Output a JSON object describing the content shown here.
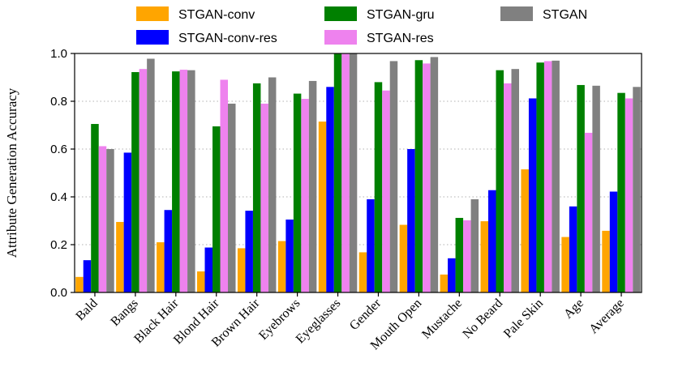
{
  "chart_data": {
    "type": "bar",
    "title": "",
    "xlabel": "",
    "ylabel": "Attribute Generation Accuracy",
    "ylim": [
      0,
      1.0
    ],
    "yticks": [
      0.0,
      0.2,
      0.4,
      0.6,
      0.8,
      1.0
    ],
    "ytick_labels": [
      "0.0",
      "0.2",
      "0.4",
      "0.6",
      "0.8",
      "1.0"
    ],
    "grid": "horizontal-dotted",
    "legend_position": "top",
    "categories": [
      "Bald",
      "Bangs",
      "Black Hair",
      "Blond Hair",
      "Brown Hair",
      "Eyebrows",
      "Eyeglasses",
      "Gender",
      "Mouth Open",
      "Mustache",
      "No Beard",
      "Pale Skin",
      "Age",
      "Average"
    ],
    "series": [
      {
        "name": "STGAN-conv",
        "color": "#ffa500",
        "values": [
          0.065,
          0.295,
          0.21,
          0.088,
          0.185,
          0.215,
          0.715,
          0.168,
          0.283,
          0.075,
          0.298,
          0.515,
          0.232,
          0.258
        ]
      },
      {
        "name": "STGAN-conv-res",
        "color": "#0000ff",
        "values": [
          0.135,
          0.585,
          0.345,
          0.188,
          0.342,
          0.305,
          0.86,
          0.39,
          0.6,
          0.143,
          0.428,
          0.812,
          0.36,
          0.422
        ]
      },
      {
        "name": "STGAN-gru",
        "color": "#008000",
        "values": [
          0.705,
          0.922,
          0.925,
          0.695,
          0.875,
          0.832,
          1.0,
          0.88,
          0.972,
          0.312,
          0.93,
          0.962,
          0.868,
          0.835
        ]
      },
      {
        "name": "STGAN-res",
        "color": "#ee82ee",
        "values": [
          0.612,
          0.935,
          0.932,
          0.89,
          0.79,
          0.81,
          1.0,
          0.845,
          0.958,
          0.302,
          0.875,
          0.968,
          0.668,
          0.812
        ]
      },
      {
        "name": "STGAN",
        "color": "#808080",
        "values": [
          0.6,
          0.978,
          0.93,
          0.79,
          0.9,
          0.885,
          1.0,
          0.968,
          0.985,
          0.39,
          0.935,
          0.97,
          0.865,
          0.86
        ]
      }
    ],
    "legend_columns": [
      [
        "STGAN-conv",
        "STGAN-conv-res"
      ],
      [
        "STGAN-gru",
        "STGAN-res"
      ],
      [
        "STGAN"
      ]
    ]
  }
}
